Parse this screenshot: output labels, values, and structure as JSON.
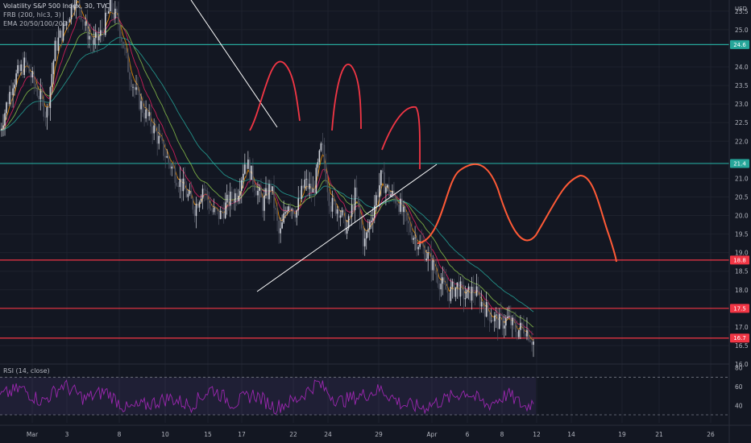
{
  "header": {
    "title": "Volatility S&P 500 Index, 30, TVC",
    "indicator1": "FRB (200, hlc3, 3)",
    "indicator2": "EMA 20/50/100/200",
    "currency": "USD"
  },
  "rsi": {
    "label": "RSI (14, close)",
    "ticks": [
      "80",
      "60",
      "40"
    ],
    "levels": [
      70,
      30
    ]
  },
  "colors": {
    "background": "#131722",
    "candle": "#d1d4dc",
    "green_level": "#26a69a",
    "red_level": "#f23645",
    "drawing": "#ff5a36",
    "rsi_line": "#9c27b0",
    "rsi_band": "#7e57c2"
  },
  "chart_data": {
    "type": "candlestick",
    "y_range": [
      16.0,
      25.8
    ],
    "y_ticks": [
      "25.5",
      "25.0",
      "24.0",
      "23.5",
      "23.0",
      "22.5",
      "22.0",
      "21.0",
      "20.5",
      "20.0",
      "19.5",
      "19.0",
      "18.5",
      "18.0",
      "17.0",
      "16.5",
      "16.0"
    ],
    "x_ticks": [
      "Mar",
      "3",
      "8",
      "10",
      "15",
      "17",
      "22",
      "24",
      "29",
      "Apr",
      "6",
      "8",
      "12",
      "14",
      "19",
      "21",
      "26"
    ],
    "price_tags": [
      {
        "value": 24.6,
        "label": "24.6",
        "color": "#26a69a"
      },
      {
        "value": 21.4,
        "label": "21.4",
        "color": "#26a69a"
      },
      {
        "value": 18.8,
        "label": "18.8",
        "color": "#f23645"
      },
      {
        "value": 17.5,
        "label": "17.5",
        "color": "#f23645"
      },
      {
        "value": 16.7,
        "label": "16.7",
        "color": "#f23645"
      }
    ],
    "horizontal_levels": [
      {
        "value": 24.6,
        "color": "#26a69a"
      },
      {
        "value": 21.4,
        "color": "#26a69a"
      },
      {
        "value": 18.8,
        "color": "#f23645"
      },
      {
        "value": 17.5,
        "color": "#f23645"
      },
      {
        "value": 16.7,
        "color": "#f23645"
      }
    ],
    "price_path": [
      [
        0.0,
        22.3
      ],
      [
        0.03,
        23.6
      ],
      [
        0.06,
        24.1
      ],
      [
        0.09,
        23.3
      ],
      [
        0.11,
        22.7
      ],
      [
        0.13,
        24.5
      ],
      [
        0.16,
        25.3
      ],
      [
        0.18,
        26.0
      ],
      [
        0.2,
        25.1
      ],
      [
        0.22,
        24.6
      ],
      [
        0.24,
        24.9
      ],
      [
        0.26,
        25.6
      ],
      [
        0.28,
        25.2
      ],
      [
        0.3,
        24.1
      ],
      [
        0.32,
        23.3
      ],
      [
        0.34,
        22.8
      ],
      [
        0.36,
        22.4
      ],
      [
        0.38,
        21.9
      ],
      [
        0.4,
        21.4
      ],
      [
        0.42,
        21.0
      ],
      [
        0.44,
        20.6
      ],
      [
        0.46,
        20.2
      ],
      [
        0.48,
        20.8
      ],
      [
        0.5,
        20.1
      ],
      [
        0.52,
        20.0
      ],
      [
        0.54,
        20.4
      ],
      [
        0.56,
        20.6
      ],
      [
        0.58,
        21.5
      ],
      [
        0.6,
        20.9
      ],
      [
        0.62,
        20.3
      ],
      [
        0.64,
        20.8
      ],
      [
        0.66,
        19.4
      ],
      [
        0.68,
        20.4
      ],
      [
        0.7,
        20.1
      ],
      [
        0.72,
        20.9
      ],
      [
        0.74,
        20.6
      ],
      [
        0.76,
        21.9
      ],
      [
        0.78,
        20.3
      ],
      [
        0.8,
        20.2
      ],
      [
        0.82,
        19.6
      ],
      [
        0.84,
        20.6
      ],
      [
        0.86,
        19.2
      ],
      [
        0.88,
        20.1
      ],
      [
        0.9,
        21.0
      ],
      [
        0.92,
        20.6
      ],
      [
        0.94,
        20.4
      ],
      [
        0.96,
        19.8
      ],
      [
        0.98,
        19.4
      ],
      [
        1.0,
        19.1
      ],
      [
        1.02,
        18.7
      ],
      [
        1.04,
        18.2
      ],
      [
        1.06,
        17.9
      ],
      [
        1.08,
        18.1
      ],
      [
        1.1,
        17.8
      ],
      [
        1.12,
        18.0
      ],
      [
        1.14,
        17.6
      ],
      [
        1.16,
        17.3
      ],
      [
        1.18,
        17.1
      ],
      [
        1.2,
        17.2
      ],
      [
        1.22,
        16.9
      ],
      [
        1.24,
        17.0
      ],
      [
        1.26,
        16.6
      ]
    ],
    "rsi_path": [
      [
        0.0,
        50
      ],
      [
        0.05,
        58
      ],
      [
        0.1,
        44
      ],
      [
        0.15,
        62
      ],
      [
        0.2,
        47
      ],
      [
        0.25,
        55
      ],
      [
        0.3,
        36
      ],
      [
        0.35,
        41
      ],
      [
        0.4,
        48
      ],
      [
        0.45,
        40
      ],
      [
        0.5,
        58
      ],
      [
        0.55,
        42
      ],
      [
        0.6,
        52
      ],
      [
        0.65,
        38
      ],
      [
        0.7,
        46
      ],
      [
        0.75,
        64
      ],
      [
        0.8,
        44
      ],
      [
        0.85,
        50
      ],
      [
        0.9,
        57
      ],
      [
        0.95,
        41
      ],
      [
        1.0,
        38
      ],
      [
        1.05,
        46
      ],
      [
        1.1,
        55
      ],
      [
        1.15,
        40
      ],
      [
        1.2,
        52
      ],
      [
        1.24,
        38
      ],
      [
        1.26,
        44
      ]
    ]
  }
}
